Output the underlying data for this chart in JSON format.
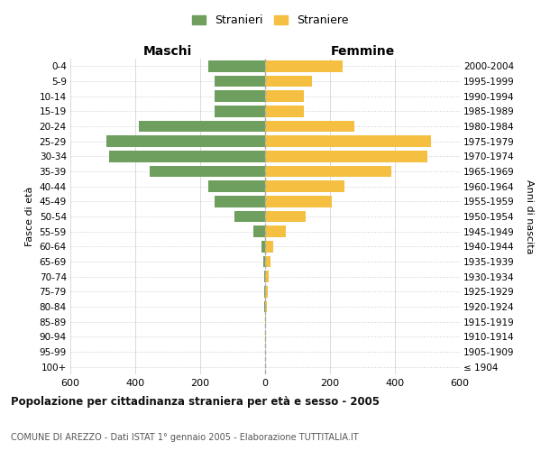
{
  "age_groups": [
    "100+",
    "95-99",
    "90-94",
    "85-89",
    "80-84",
    "75-79",
    "70-74",
    "65-69",
    "60-64",
    "55-59",
    "50-54",
    "45-49",
    "40-44",
    "35-39",
    "30-34",
    "25-29",
    "20-24",
    "15-19",
    "10-14",
    "5-9",
    "0-4"
  ],
  "birth_years": [
    "≤ 1904",
    "1905-1909",
    "1910-1914",
    "1915-1919",
    "1920-1924",
    "1925-1929",
    "1930-1934",
    "1935-1939",
    "1940-1944",
    "1945-1949",
    "1950-1954",
    "1955-1959",
    "1960-1964",
    "1965-1969",
    "1970-1974",
    "1975-1979",
    "1980-1984",
    "1985-1989",
    "1990-1994",
    "1995-1999",
    "2000-2004"
  ],
  "maschi": [
    0,
    0,
    0,
    1,
    2,
    3,
    4,
    6,
    12,
    35,
    95,
    155,
    175,
    355,
    480,
    490,
    390,
    155,
    155,
    155,
    175
  ],
  "femmine": [
    1,
    1,
    2,
    4,
    6,
    8,
    12,
    18,
    25,
    65,
    125,
    205,
    245,
    390,
    500,
    510,
    275,
    120,
    120,
    145,
    240
  ],
  "maschi_color": "#6e9f5e",
  "femmine_color": "#f5c042",
  "background_color": "#ffffff",
  "grid_color": "#cccccc",
  "title": "Popolazione per cittadinanza straniera per età e sesso - 2005",
  "subtitle": "COMUNE DI AREZZO - Dati ISTAT 1° gennaio 2005 - Elaborazione TUTTITALIA.IT",
  "xlabel_left": "Maschi",
  "xlabel_right": "Femmine",
  "ylabel_left": "Fasce di età",
  "ylabel_right": "Anni di nascita",
  "legend_maschi": "Stranieri",
  "legend_femmine": "Straniere",
  "xlim": 600,
  "bar_height": 0.75
}
